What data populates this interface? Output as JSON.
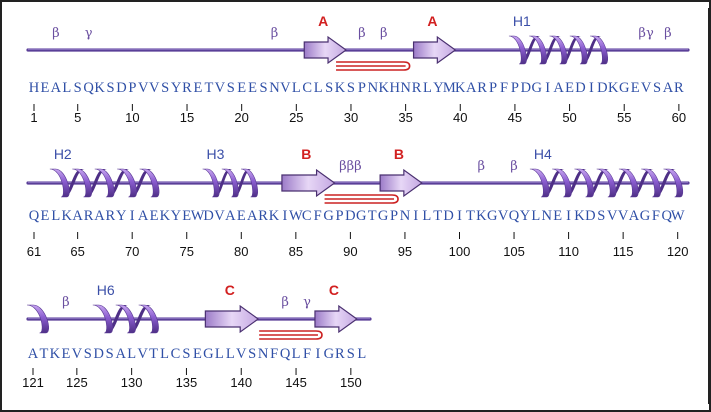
{
  "colors": {
    "border": "#222222",
    "backbone": "#5a3f98",
    "helix": "#8a5ccf",
    "helix_dark": "#4e2f86",
    "strand": "#c4a8e2",
    "strand_edge": "#4a3070",
    "hairpin": "#cc2222",
    "sequence": "#2f4fa6",
    "greek": "#6a4fa0",
    "sheet_label": "#d22020",
    "helix_label": "#3b4fa8"
  },
  "panels": [
    {
      "sequence": "HEALSQKSDPVVSYRETVSEESNVLCLSKSPNKHNRLYMKARPFPDGIAEDIDKGEVSAR",
      "ticks": [
        {
          "label": "1",
          "pos": 1
        },
        {
          "label": "5",
          "pos": 5
        },
        {
          "label": "10",
          "pos": 10
        },
        {
          "label": "15",
          "pos": 15
        },
        {
          "label": "20",
          "pos": 20
        },
        {
          "label": "25",
          "pos": 25
        },
        {
          "label": "30",
          "pos": 30
        },
        {
          "label": "35",
          "pos": 35
        },
        {
          "label": "40",
          "pos": 40
        },
        {
          "label": "45",
          "pos": 45
        },
        {
          "label": "50",
          "pos": 50
        },
        {
          "label": "55",
          "pos": 55
        },
        {
          "label": "60",
          "pos": 60
        }
      ],
      "helices": [
        {
          "label": "H1",
          "start": 45,
          "end": 53
        }
      ],
      "strands": [
        {
          "label": "A",
          "start": 26,
          "end": 29
        },
        {
          "label": "A",
          "start": 36,
          "end": 39
        }
      ],
      "hairpins": [
        {
          "start": 29,
          "end": 35
        }
      ],
      "greek": [
        {
          "text": "β",
          "pos": 3
        },
        {
          "text": "γ",
          "pos": 6
        },
        {
          "text": "β",
          "pos": 23
        },
        {
          "text": "β",
          "pos": 31
        },
        {
          "text": "β",
          "pos": 33
        },
        {
          "text": "βγ",
          "pos": 57
        },
        {
          "text": "β",
          "pos": 59
        }
      ]
    },
    {
      "sequence": "QELKARARYIAEKYEWDVAEARKIWCFGPDGTGPNILTDITKGVQYLNEIKDSVVAGFQW",
      "ticks": [
        {
          "label": "61",
          "pos": 61
        },
        {
          "label": "65",
          "pos": 65
        },
        {
          "label": "70",
          "pos": 70
        },
        {
          "label": "75",
          "pos": 75
        },
        {
          "label": "80",
          "pos": 80
        },
        {
          "label": "85",
          "pos": 85
        },
        {
          "label": "90",
          "pos": 90
        },
        {
          "label": "95",
          "pos": 95
        },
        {
          "label": "100",
          "pos": 100
        },
        {
          "label": "105",
          "pos": 105
        },
        {
          "label": "110",
          "pos": 110
        },
        {
          "label": "115",
          "pos": 115
        },
        {
          "label": "120",
          "pos": 120
        }
      ],
      "helices": [
        {
          "label": "H2",
          "start": 63,
          "end": 72
        },
        {
          "label": "H3",
          "start": 77,
          "end": 81
        },
        {
          "label": "H4",
          "start": 107,
          "end": 120
        }
      ],
      "strands": [
        {
          "label": "B",
          "start": 84,
          "end": 88
        },
        {
          "label": "B",
          "start": 93,
          "end": 96
        }
      ],
      "hairpins": [
        {
          "start": 88,
          "end": 94
        }
      ],
      "greek": [
        {
          "text": "βββ",
          "pos": 90
        },
        {
          "text": "β",
          "pos": 102
        },
        {
          "text": "β",
          "pos": 105
        }
      ]
    },
    {
      "sequence": "ATKEVSDSALVTLCSEGLLVSNFQLFIGRSL",
      "ticks": [
        {
          "label": "121",
          "pos": 121
        },
        {
          "label": "125",
          "pos": 125
        },
        {
          "label": "130",
          "pos": 130
        },
        {
          "label": "135",
          "pos": 135
        },
        {
          "label": "140",
          "pos": 140
        },
        {
          "label": "145",
          "pos": 145
        },
        {
          "label": "150",
          "pos": 150
        }
      ],
      "helices": [
        {
          "label": "",
          "start": 121,
          "end": 122
        },
        {
          "label": "H6",
          "start": 127,
          "end": 132
        }
      ],
      "strands": [
        {
          "label": "C",
          "start": 137,
          "end": 141
        },
        {
          "label": "C",
          "start": 147,
          "end": 150
        }
      ],
      "hairpins": [
        {
          "start": 142,
          "end": 147
        }
      ],
      "greek": [
        {
          "text": "β",
          "pos": 124
        },
        {
          "text": "β",
          "pos": 144
        },
        {
          "text": "γ",
          "pos": 146
        }
      ]
    }
  ]
}
